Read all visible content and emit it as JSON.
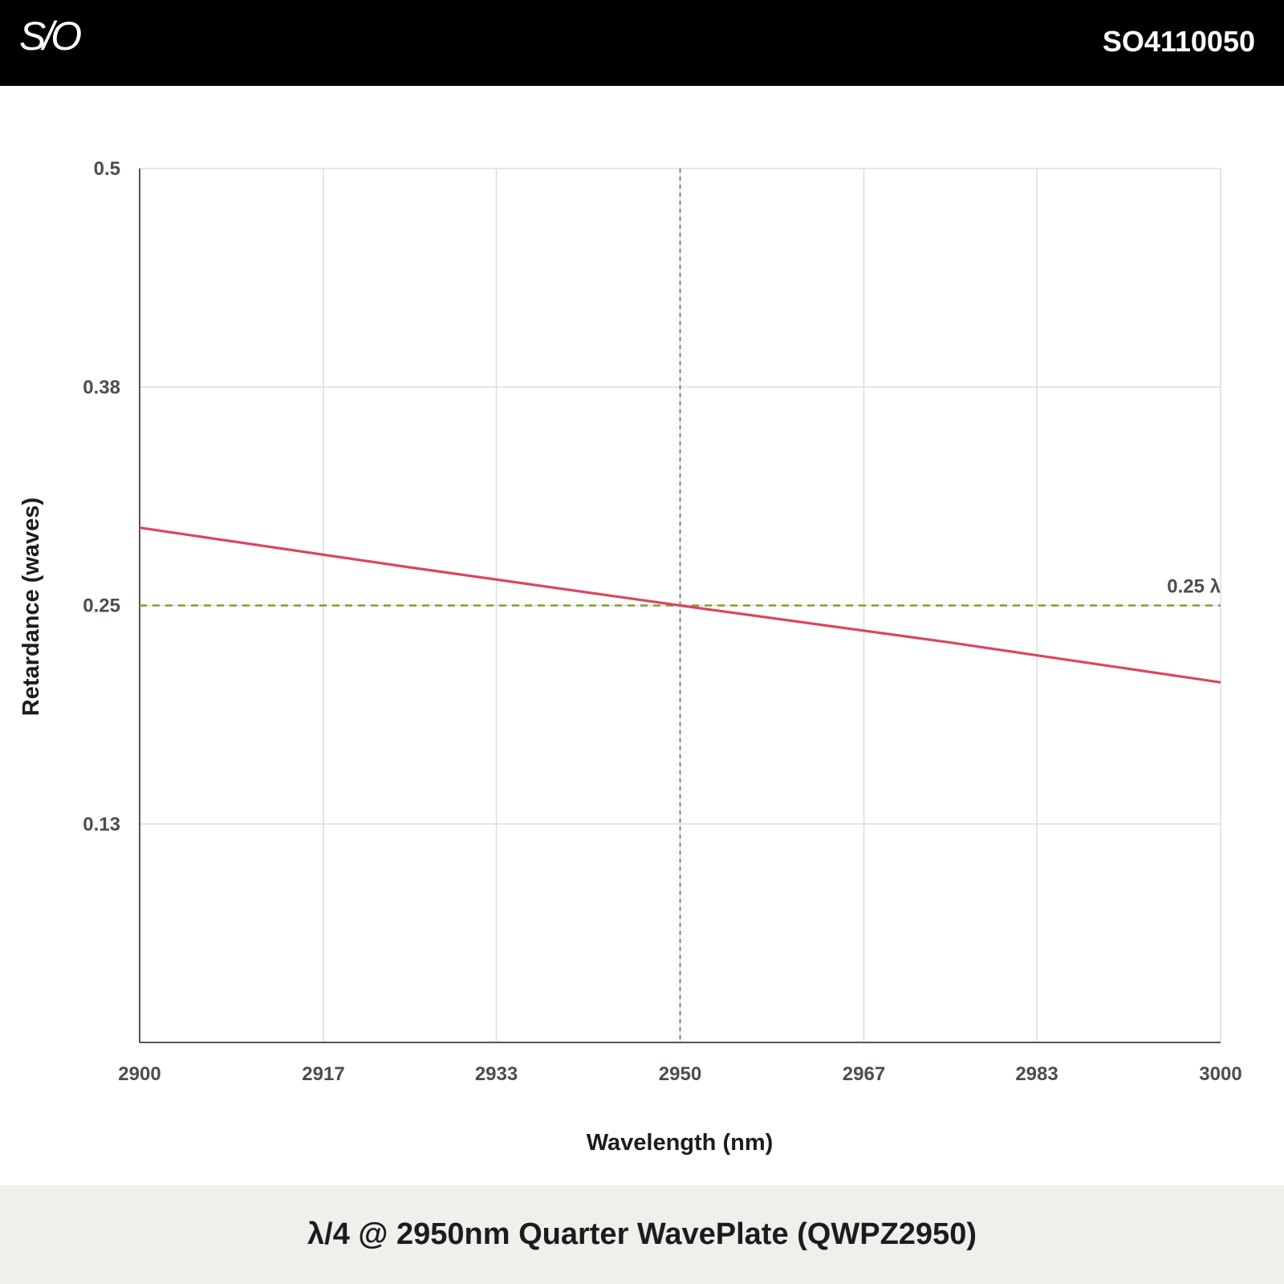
{
  "header": {
    "logo_text": "S/O",
    "product_code": "SO4110050"
  },
  "footer": {
    "title": "λ/4 @ 2950nm Quarter WavePlate (QWPZ2950)"
  },
  "colors": {
    "header_bg": "#000000",
    "footer_bg": "#eef0eb",
    "series": "#d9475f",
    "reference": "#7aa32a",
    "grid": "#dddddd",
    "tick_text": "#4a4f4a"
  },
  "chart_data": {
    "type": "line",
    "xlabel": "Wavelength (nm)",
    "ylabel": "Retardance (waves)",
    "xlim": [
      2900,
      3000
    ],
    "ylim": [
      0.0,
      0.5
    ],
    "x_ticks": [
      2900,
      2917,
      2933,
      2950,
      2967,
      2983,
      3000
    ],
    "x_tick_labels": [
      "2900",
      "2917",
      "2933",
      "2950",
      "2967",
      "2983",
      "3000"
    ],
    "y_ticks": [
      0.5,
      0.375,
      0.25,
      0.125
    ],
    "y_tick_labels": [
      "0.5",
      "0.38",
      "0.25",
      "0.13"
    ],
    "grid": true,
    "series": [
      {
        "x": [
          2900,
          2925,
          2950,
          2975,
          3000
        ],
        "y": [
          0.2945,
          0.2718,
          0.25,
          0.2288,
          0.206
        ]
      }
    ],
    "reference_line": {
      "y": 0.25,
      "label": "0.25 λ",
      "style": "dashed"
    },
    "center_marker": {
      "x": 2950,
      "style": "dashed"
    }
  }
}
